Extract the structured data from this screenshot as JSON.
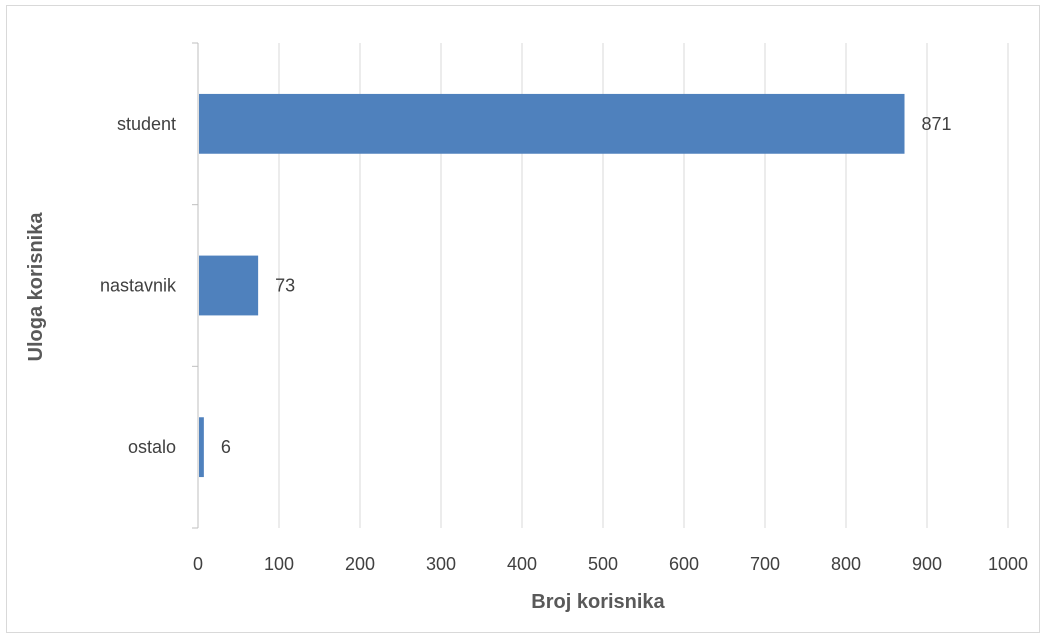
{
  "chart_data": {
    "type": "bar",
    "orientation": "horizontal",
    "categories": [
      "student",
      "nastavnik",
      "ostalo"
    ],
    "values": [
      871,
      73,
      6
    ],
    "data_labels": [
      "871",
      "73",
      "6"
    ],
    "xlabel": "Broj korisnika",
    "ylabel": "Uloga korisnika",
    "xlim": [
      0,
      1000
    ],
    "x_ticks": [
      "0",
      "100",
      "200",
      "300",
      "400",
      "500",
      "600",
      "700",
      "800",
      "900",
      "1000"
    ],
    "grid": "vertical",
    "legend": "none",
    "bar_color": "#4f81bd"
  }
}
